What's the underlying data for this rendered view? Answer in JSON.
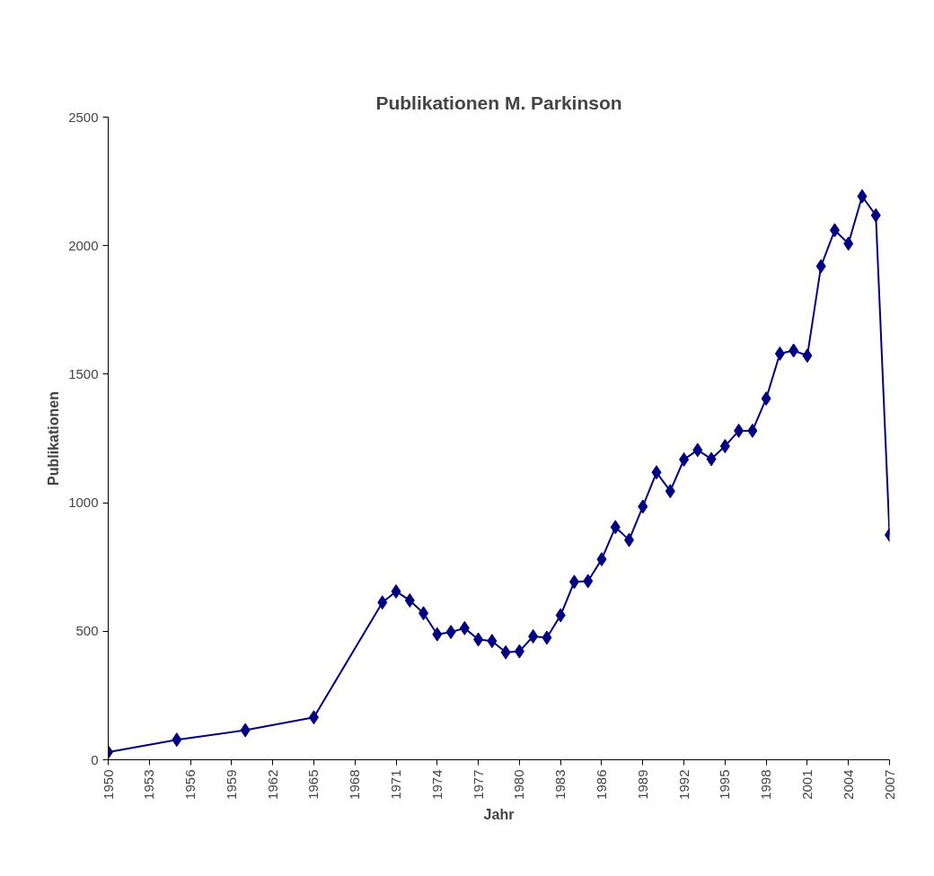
{
  "chart_data": {
    "type": "line",
    "title": "Publikationen M. Parkinson",
    "xlabel": "Jahr",
    "ylabel": "Publikationen",
    "x": [
      1950,
      1955,
      1960,
      1965,
      1970,
      1971,
      1972,
      1973,
      1974,
      1975,
      1976,
      1977,
      1978,
      1979,
      1980,
      1981,
      1982,
      1983,
      1984,
      1985,
      1986,
      1987,
      1988,
      1989,
      1990,
      1991,
      1992,
      1993,
      1994,
      1995,
      1996,
      1997,
      1998,
      1999,
      2000,
      2001,
      2002,
      2003,
      2004,
      2005,
      2006,
      2007
    ],
    "series": [
      {
        "color": "#000080",
        "values": [
          30,
          78,
          115,
          165,
          612,
          655,
          620,
          570,
          488,
          497,
          512,
          468,
          462,
          418,
          422,
          480,
          475,
          562,
          692,
          695,
          780,
          905,
          855,
          985,
          1118,
          1045,
          1168,
          1205,
          1170,
          1220,
          1280,
          1280,
          1405,
          1580,
          1592,
          1572,
          1920,
          2060,
          2008,
          2192,
          2118,
          875
        ]
      }
    ],
    "xlim": [
      1950,
      2007
    ],
    "xticks": [
      1950,
      1953,
      1956,
      1959,
      1962,
      1965,
      1968,
      1971,
      1974,
      1977,
      1980,
      1983,
      1986,
      1989,
      1992,
      1995,
      1998,
      2001,
      2004,
      2007
    ],
    "ylim": [
      0,
      2500
    ],
    "yticks": [
      0,
      500,
      1000,
      1500,
      2000,
      2500
    ],
    "marker": "diamond",
    "line_style": "solid",
    "grid": false
  }
}
